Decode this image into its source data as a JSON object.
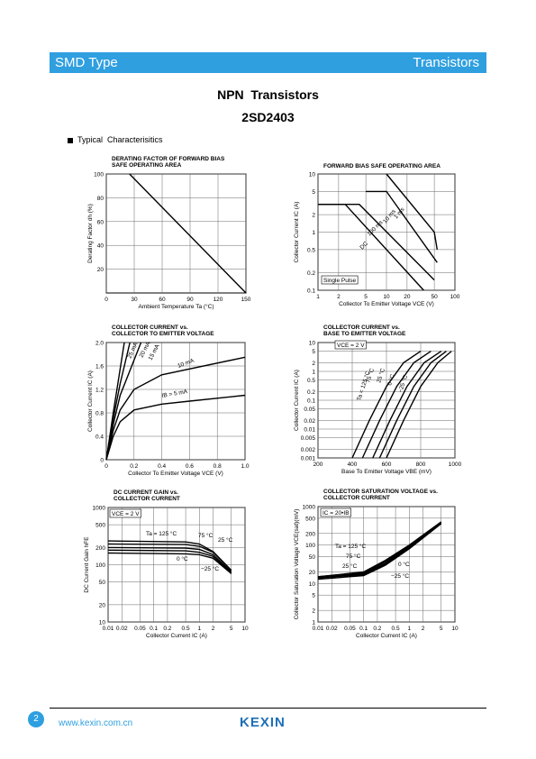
{
  "header": {
    "left": "SMD Type",
    "right": "Transistors"
  },
  "title": "NPN  Transistors",
  "part": "2SD2403",
  "section": "Typical  Characterisitics",
  "footer": {
    "page_number": "2",
    "website": "www.kexin.com.cn",
    "logo": "KEXIN"
  },
  "charts": [
    {
      "type": "line",
      "title": [
        "DERATING FACTOR OF FORWARD BIAS",
        "SAFE OPERATING AREA"
      ],
      "x_label": "Ambient Temperature  Ta (°C)",
      "y_label": "Derating Factor  dh (%)",
      "xlim": [
        0,
        150
      ],
      "ylim": [
        0,
        100
      ],
      "xticks": [
        0,
        30,
        60,
        90,
        120,
        150
      ],
      "yticks": [
        20,
        40,
        60,
        80,
        100
      ],
      "series": [
        {
          "x": [
            25,
            150
          ],
          "y": [
            100,
            0
          ]
        }
      ],
      "annotations": []
    },
    {
      "type": "line",
      "title": [
        "FORWARD BIAS SAFE OPERATING AREA"
      ],
      "x_label": "Collector To Emitter Voltage  VCE (V)",
      "y_label": "Collector Current  IC (A)",
      "xscale": "log",
      "yscale": "log",
      "xlim": [
        1,
        100
      ],
      "ylim": [
        0.1,
        10
      ],
      "xticks": [
        1,
        2,
        5,
        10,
        20,
        50,
        100
      ],
      "yticks": [
        0.1,
        0.2,
        0.5,
        1,
        2,
        5,
        10
      ],
      "series": [
        {
          "name": "1 ms",
          "x": [
            10,
            50,
            55
          ],
          "y": [
            10,
            1,
            0.5
          ]
        },
        {
          "name": "10 ms",
          "x": [
            5,
            10,
            55
          ],
          "y": [
            5,
            5,
            0.3
          ]
        },
        {
          "name": "100 ms",
          "x": [
            1,
            4,
            50
          ],
          "y": [
            3,
            3,
            0.15
          ]
        },
        {
          "name": "DC",
          "x": [
            1,
            2.5,
            35
          ],
          "y": [
            3,
            3,
            0.1
          ]
        }
      ],
      "annotations": [
        "Single Pulse"
      ]
    },
    {
      "type": "line",
      "title": [
        "COLLECTOR CURRENT vs.",
        "COLLECTOR TO EMITTER VOLTAGE"
      ],
      "x_label": "Collector To Emitter Voltage  VCE (V)",
      "y_label": "Collector Current  IC (A)",
      "xlim": [
        0,
        1
      ],
      "ylim": [
        0,
        2
      ],
      "xticks": [
        0,
        0.2,
        0.4,
        0.6,
        0.8,
        {
          "value": 1,
          "label": "1.0"
        }
      ],
      "yticks": [
        0,
        0.4,
        0.8,
        1.2,
        1.6,
        {
          "value": 2,
          "label": "2.0"
        }
      ],
      "series": [
        {
          "name": "IB = 5 mA",
          "x": [
            0,
            0.05,
            0.1,
            0.2,
            0.4,
            0.6,
            1
          ],
          "y": [
            0,
            0.4,
            0.65,
            0.85,
            0.95,
            1,
            1.1
          ]
        },
        {
          "name": "10 mA",
          "x": [
            0,
            0.05,
            0.1,
            0.2,
            0.4,
            1
          ],
          "y": [
            0,
            0.5,
            0.85,
            1.2,
            1.45,
            1.75
          ]
        },
        {
          "name": "15 mA",
          "x": [
            0,
            0.05,
            0.1,
            0.2,
            0.25
          ],
          "y": [
            0,
            0.6,
            1.1,
            1.7,
            2
          ]
        },
        {
          "name": "20 mA",
          "x": [
            0,
            0.05,
            0.1,
            0.17
          ],
          "y": [
            0,
            0.7,
            1.3,
            2
          ]
        },
        {
          "name": "25 mA",
          "x": [
            0,
            0.05,
            0.13
          ],
          "y": [
            0,
            0.8,
            2
          ]
        }
      ],
      "annotations": []
    },
    {
      "type": "line",
      "title": [
        "COLLECTOR CURRENT vs.",
        "BASE TO EMITTER VOLTAGE"
      ],
      "x_label": "Base To Emitter Voltage  VBE (mV)",
      "y_label": "Collector Current  IC (A)",
      "yscale": "log",
      "xlim": [
        200,
        1000
      ],
      "ylim": [
        0.001,
        10
      ],
      "xticks": [
        200,
        400,
        600,
        800,
        1000
      ],
      "yticks": [
        0.001,
        0.002,
        0.005,
        0.01,
        0.02,
        0.05,
        0.1,
        0.2,
        0.5,
        1,
        2,
        5,
        10
      ],
      "series": [
        {
          "name": "Ta = 125 °C",
          "x": [
            400,
            500,
            600,
            700,
            800
          ],
          "y": [
            0.001,
            0.02,
            0.3,
            2,
            5
          ]
        },
        {
          "name": "75 °C",
          "x": [
            460,
            560,
            660,
            760,
            860
          ],
          "y": [
            0.001,
            0.02,
            0.3,
            2,
            5
          ]
        },
        {
          "name": "25 °C",
          "x": [
            520,
            620,
            720,
            820,
            920
          ],
          "y": [
            0.001,
            0.02,
            0.3,
            2,
            5
          ]
        },
        {
          "name": "0 °C",
          "x": [
            560,
            660,
            760,
            860,
            950
          ],
          "y": [
            0.001,
            0.02,
            0.3,
            2,
            5
          ]
        },
        {
          "name": "−25 °C",
          "x": [
            600,
            700,
            800,
            900,
            980
          ],
          "y": [
            0.001,
            0.02,
            0.3,
            2,
            5
          ]
        }
      ],
      "annotations": [
        "VCE = 2 V"
      ]
    },
    {
      "type": "line",
      "title": [
        "DC CURRENT GAIN vs.",
        "COLLECTOR CURRENT"
      ],
      "x_label": "Collector Current  IC (A)",
      "y_label": "DC Current Gain  hFE",
      "xscale": "log",
      "yscale": "log",
      "xlim": [
        0.01,
        10
      ],
      "ylim": [
        10,
        1000
      ],
      "xticks": [
        0.01,
        0.02,
        0.05,
        0.1,
        0.2,
        0.5,
        1,
        2,
        5,
        10
      ],
      "yticks": [
        10,
        20,
        50,
        100,
        200,
        500,
        1000
      ],
      "series": [
        {
          "name": "Ta = 125 °C",
          "x": [
            0.01,
            0.5,
            1,
            2,
            5
          ],
          "y": [
            260,
            250,
            230,
            170,
            80
          ]
        },
        {
          "name": "75 °C",
          "x": [
            0.01,
            0.5,
            1,
            2,
            5
          ],
          "y": [
            230,
            225,
            210,
            165,
            80
          ]
        },
        {
          "name": "25 °C",
          "x": [
            0.01,
            0.5,
            1,
            2,
            5
          ],
          "y": [
            200,
            195,
            185,
            150,
            75
          ]
        },
        {
          "name": "0 °C",
          "x": [
            0.01,
            0.5,
            1,
            2,
            5
          ],
          "y": [
            180,
            175,
            165,
            140,
            72
          ]
        },
        {
          "name": "−25 °C",
          "x": [
            0.01,
            0.5,
            1,
            2,
            5
          ],
          "y": [
            160,
            155,
            150,
            130,
            70
          ]
        }
      ],
      "annotations": [
        "VCE = 2 V"
      ]
    },
    {
      "type": "line",
      "title": [
        "COLLECTOR SATURATION VOLTAGE vs.",
        "COLLECTOR CURRENT"
      ],
      "x_label": "Collector Current  IC (A)",
      "y_label": "Collector Saturation Voltage  VCE(sat)(mV)",
      "xscale": "log",
      "yscale": "log",
      "xlim": [
        0.01,
        10
      ],
      "ylim": [
        1,
        1000
      ],
      "xticks": [
        0.01,
        0.02,
        0.05,
        0.1,
        0.2,
        0.5,
        1,
        2,
        5,
        10
      ],
      "yticks": [
        1,
        2,
        5,
        10,
        20,
        50,
        100,
        200,
        500,
        1000
      ],
      "series": [
        {
          "name": "Ta = 125 °C",
          "x": [
            0.01,
            0.1,
            0.3,
            1,
            5
          ],
          "y": [
            15,
            20,
            40,
            100,
            400
          ]
        },
        {
          "name": "75 °C",
          "x": [
            0.01,
            0.1,
            0.3,
            1,
            5
          ],
          "y": [
            15,
            19,
            37,
            95,
            390
          ]
        },
        {
          "name": "25 °C",
          "x": [
            0.01,
            0.1,
            0.3,
            1,
            5
          ],
          "y": [
            14,
            18,
            34,
            90,
            380
          ]
        },
        {
          "name": "0 °C",
          "x": [
            0.01,
            0.1,
            0.3,
            1,
            5
          ],
          "y": [
            14,
            17,
            32,
            85,
            370
          ]
        },
        {
          "name": "−25 °C",
          "x": [
            0.01,
            0.1,
            0.3,
            1,
            5
          ],
          "y": [
            13,
            16,
            30,
            80,
            360
          ]
        }
      ],
      "annotations": [
        "IC = 20•IB"
      ]
    }
  ]
}
